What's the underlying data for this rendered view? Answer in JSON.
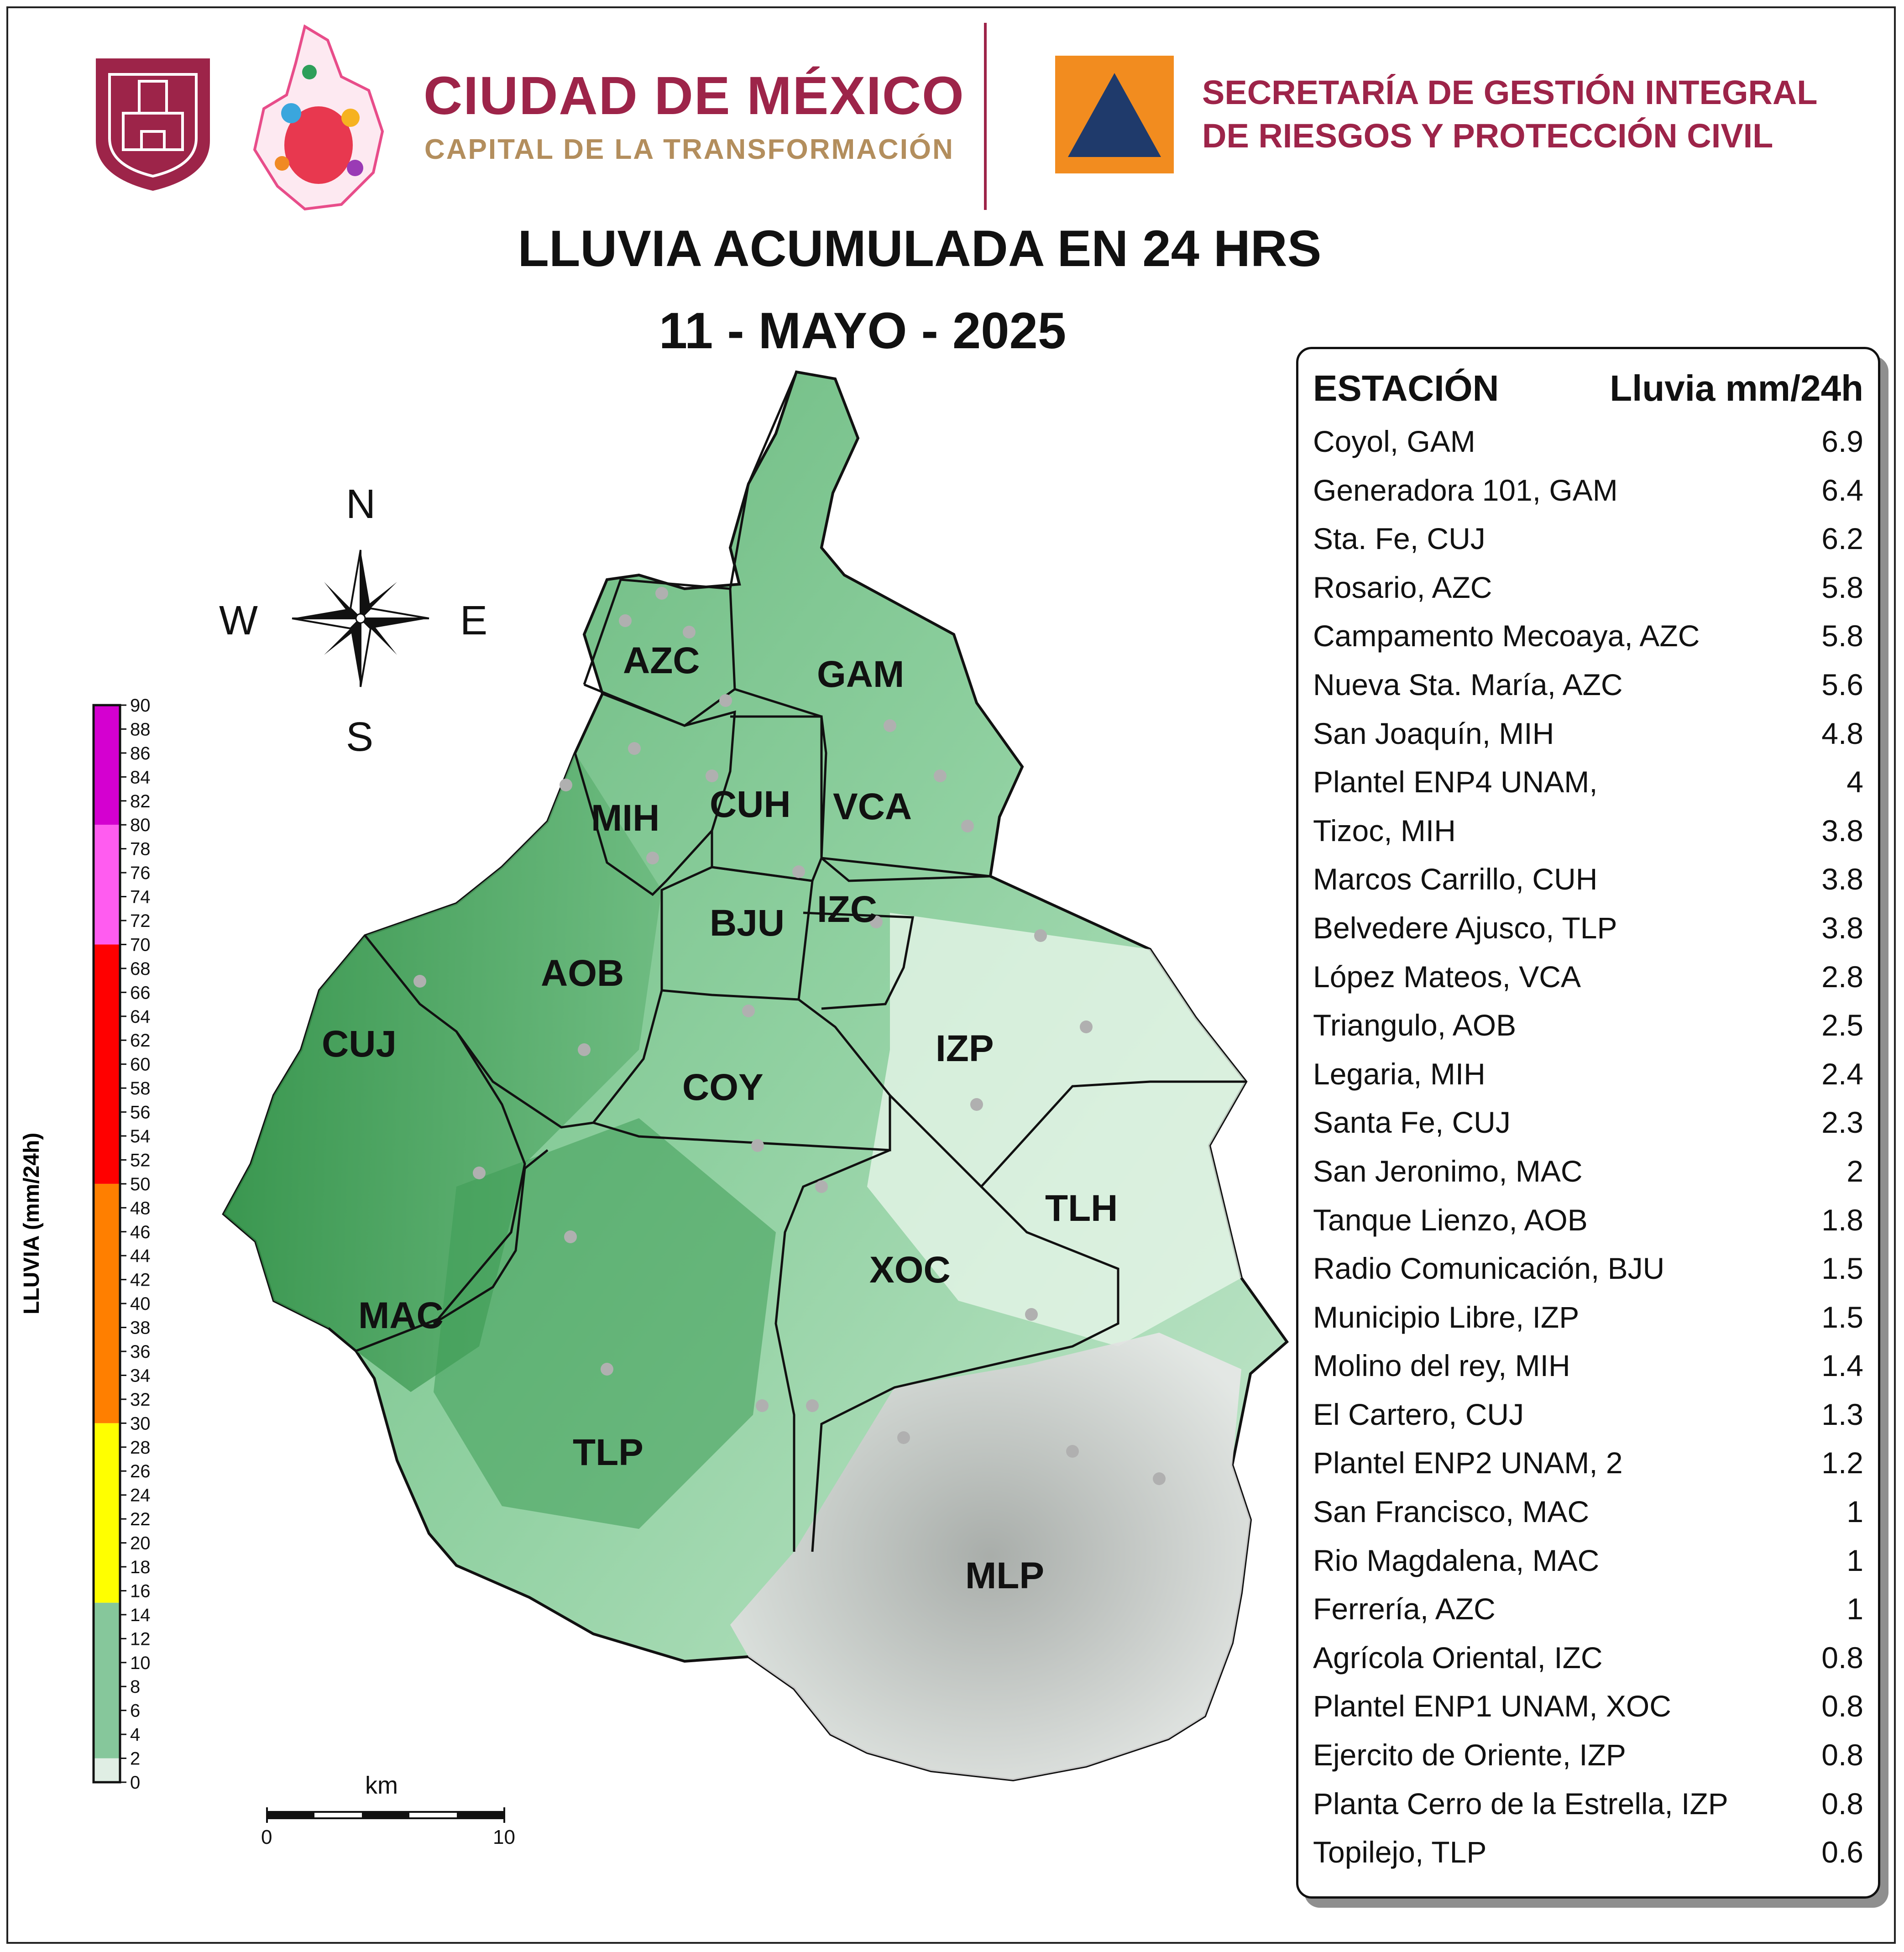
{
  "header": {
    "cdmx_title": "CIUDAD DE MÉXICO",
    "cdmx_subtitle": "CAPITAL DE LA TRANSFORMACIÓN",
    "agency_line1": "SECRETARÍA DE GESTIÓN INTEGRAL",
    "agency_line2": "DE RIESGOS Y PROTECCIÓN CIVIL"
  },
  "map": {
    "title": "LLUVIA ACUMULADA EN 24 HRS",
    "date": "11 - MAYO - 2025",
    "compass": {
      "n": "N",
      "s": "S",
      "e": "E",
      "w": "W"
    },
    "scale_bar": {
      "unit": "km",
      "start": "0",
      "end": "10"
    },
    "boroughs": [
      "AZC",
      "GAM",
      "MIH",
      "CUH",
      "VCA",
      "BJU",
      "IZC",
      "AOB",
      "CUJ",
      "COY",
      "IZP",
      "TLH",
      "XOC",
      "MAC",
      "TLP",
      "MLP"
    ],
    "colors": {
      "green": "#6fbf85",
      "yellow": "#ffff00",
      "orange": "#ff7f00",
      "red": "#ff0000",
      "pink": "#ff5cf0",
      "magenta": "#d400d0",
      "dark_green": "#2f8f45",
      "light_green": "#e6f5e8"
    }
  },
  "colorbar": {
    "label": "LLUVIA (mm/24h)",
    "ticks": [
      "0",
      "2",
      "4",
      "6",
      "8",
      "10",
      "12",
      "14",
      "16",
      "18",
      "20",
      "22",
      "24",
      "26",
      "28",
      "30",
      "32",
      "34",
      "36",
      "38",
      "40",
      "42",
      "44",
      "46",
      "48",
      "50",
      "52",
      "54",
      "56",
      "58",
      "60",
      "62",
      "64",
      "66",
      "68",
      "70",
      "72",
      "74",
      "76",
      "78",
      "80",
      "82",
      "84",
      "86",
      "88",
      "90"
    ],
    "bands": [
      {
        "from": 0,
        "to": 2,
        "color": "#e0eee4"
      },
      {
        "from": 2,
        "to": 15,
        "color": "#86c79b"
      },
      {
        "from": 15,
        "to": 30,
        "color": "#ffff00"
      },
      {
        "from": 30,
        "to": 50,
        "color": "#ff7f00"
      },
      {
        "from": 50,
        "to": 70,
        "color": "#ff0000"
      },
      {
        "from": 70,
        "to": 80,
        "color": "#ff5cf0"
      },
      {
        "from": 80,
        "to": 90,
        "color": "#d400d0"
      }
    ]
  },
  "table": {
    "header_station": "ESTACIÓN",
    "header_rain": "Lluvia mm/24h",
    "rows": [
      {
        "station": "Coyol, GAM",
        "rain": "6.9"
      },
      {
        "station": "Generadora 101, GAM",
        "rain": "6.4"
      },
      {
        "station": "Sta. Fe, CUJ",
        "rain": "6.2"
      },
      {
        "station": "Rosario, AZC",
        "rain": "5.8"
      },
      {
        "station": "Campamento Mecoaya, AZC",
        "rain": "5.8"
      },
      {
        "station": "Nueva Sta. María, AZC",
        "rain": "5.6"
      },
      {
        "station": "San Joaquín, MIH",
        "rain": "4.8"
      },
      {
        "station": "Plantel ENP4 UNAM,",
        "rain": "4"
      },
      {
        "station": "Tizoc, MIH",
        "rain": "3.8"
      },
      {
        "station": "Marcos Carrillo, CUH",
        "rain": "3.8"
      },
      {
        "station": "Belvedere Ajusco, TLP",
        "rain": "3.8"
      },
      {
        "station": "López Mateos, VCA",
        "rain": "2.8"
      },
      {
        "station": "Triangulo, AOB",
        "rain": "2.5"
      },
      {
        "station": "Legaria, MIH",
        "rain": "2.4"
      },
      {
        "station": "Santa Fe, CUJ",
        "rain": "2.3"
      },
      {
        "station": "San Jeronimo, MAC",
        "rain": "2"
      },
      {
        "station": "Tanque Lienzo, AOB",
        "rain": "1.8"
      },
      {
        "station": "Radio Comunicación, BJU",
        "rain": "1.5"
      },
      {
        "station": "Municipio Libre, IZP",
        "rain": "1.5"
      },
      {
        "station": "Molino del rey, MIH",
        "rain": "1.4"
      },
      {
        "station": "El Cartero, CUJ",
        "rain": "1.3"
      },
      {
        "station": "Plantel ENP2 UNAM, 2",
        "rain": "1.2"
      },
      {
        "station": "San Francisco, MAC",
        "rain": "1"
      },
      {
        "station": "Rio Magdalena, MAC",
        "rain": "1"
      },
      {
        "station": "Ferrería, AZC",
        "rain": "1"
      },
      {
        "station": "Agrícola Oriental, IZC",
        "rain": "0.8"
      },
      {
        "station": "Plantel ENP1 UNAM, XOC",
        "rain": "0.8"
      },
      {
        "station": "Ejercito de Oriente, IZP",
        "rain": "0.8"
      },
      {
        "station": "Planta Cerro de la Estrella, IZP",
        "rain": "0.8"
      },
      {
        "station": "Topilejo, TLP",
        "rain": "0.6"
      }
    ]
  }
}
